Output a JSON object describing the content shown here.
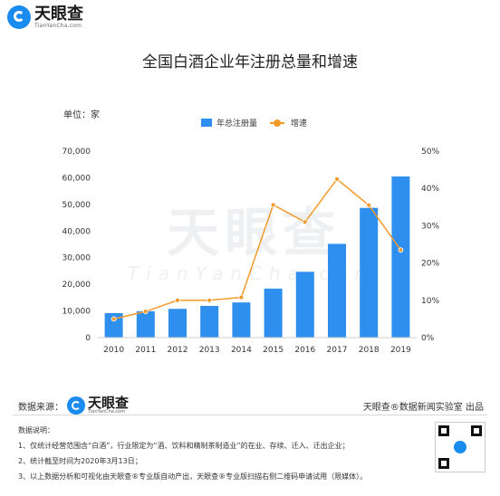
{
  "brand": {
    "name": "天眼查",
    "sub": "TianYanCha.com"
  },
  "watermark": {
    "main": "天眼查",
    "sub": "TianYanCha.com"
  },
  "title": "全国白酒企业年注册总量和增速",
  "unit": "单位：家",
  "legend": {
    "bar": "年总注册量",
    "line": "增速"
  },
  "colors": {
    "bar": "#2f8fee",
    "line": "#f39a2a",
    "brand": "#1a8cf0"
  },
  "chart_data": {
    "type": "bar",
    "title": "全国白酒企业年注册总量和增速",
    "categories": [
      "2010",
      "2011",
      "2012",
      "2013",
      "2014",
      "2015",
      "2016",
      "2017",
      "2018",
      "2019"
    ],
    "series": [
      {
        "name": "年总注册量",
        "type": "bar",
        "axis": "left",
        "values": [
          9200,
          9900,
          10800,
          11900,
          13200,
          18400,
          24700,
          35200,
          48700,
          60500
        ]
      },
      {
        "name": "增速",
        "type": "line",
        "axis": "right",
        "values": [
          5.0,
          7.0,
          10.0,
          10.0,
          10.8,
          35.6,
          31.0,
          42.5,
          35.5,
          23.5
        ]
      }
    ],
    "y_left": {
      "min": 0,
      "max": 70000,
      "ticks": [
        "0",
        "10,000",
        "20,000",
        "30,000",
        "40,000",
        "50,000",
        "60,000",
        "70,000"
      ]
    },
    "y_right": {
      "min": 0,
      "max": 50,
      "ticks": [
        "0%",
        "10%",
        "20%",
        "30%",
        "40%",
        "50%"
      ]
    },
    "grid": false,
    "legend_position": "top-center"
  },
  "footer": {
    "source_label": "数据来源：",
    "credit": "天眼查®数据新闻实验室 出品",
    "notes_title": "数据说明：",
    "notes": [
      "1、仅统计经营范围含“白酒”，行业限定为“酒、饮料和精制茶制造业”的在业、存续、迁入、迁出企业；",
      "2、统计截至时间为2020年3月13日；",
      "3、以上数据分析和可视化由天眼查®专业版自动产出，天眼查®专业版扫描右侧二维码申请试用（限媒体）。"
    ]
  }
}
